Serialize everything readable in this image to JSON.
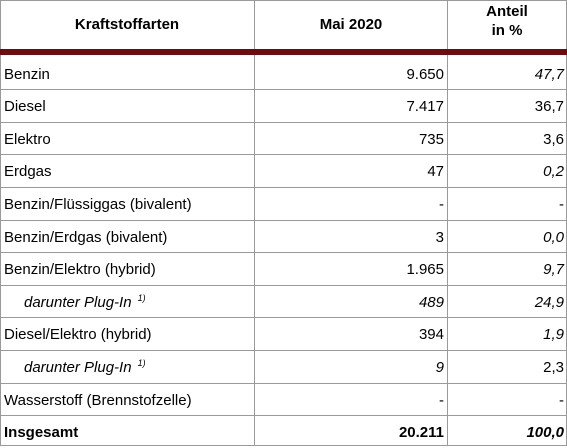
{
  "header": {
    "col1": "Kraftstoffarten",
    "col2": "Mai 2020",
    "col3_line1": "Anteil",
    "col3_line2": "in %"
  },
  "rows": [
    {
      "label": "Benzin",
      "value": "9.650",
      "share": "47,7",
      "share_italic": true
    },
    {
      "label": "Diesel",
      "value": "7.417",
      "share": "36,7",
      "share_italic": false
    },
    {
      "label": "Elektro",
      "value": "735",
      "share": "3,6",
      "share_italic": false
    },
    {
      "label": "Erdgas",
      "value": "47",
      "share": "0,2",
      "share_italic": true
    },
    {
      "label": "Benzin/Flüssiggas (bivalent)",
      "value": "-",
      "share": "-",
      "share_italic": false
    },
    {
      "label": "Benzin/Erdgas (bivalent)",
      "value": "3",
      "share": "0,0",
      "share_italic": true
    },
    {
      "label": "Benzin/Elektro (hybrid)",
      "value": "1.965",
      "share": "9,7",
      "share_italic": true
    },
    {
      "label": "darunter Plug-In",
      "footnote": "1)",
      "value": "489",
      "share": "24,9",
      "share_italic": true,
      "italic_row": true
    },
    {
      "label": "Diesel/Elektro (hybrid)",
      "value": "394",
      "share": "1,9",
      "share_italic": true
    },
    {
      "label": "darunter Plug-In",
      "footnote": "1)",
      "value": "9",
      "share": "2,3",
      "share_italic": false,
      "italic_row": true
    },
    {
      "label": "Wasserstoff (Brennstofzelle)",
      "value": "-",
      "share": "-",
      "share_italic": false
    },
    {
      "label": "Insgesamt",
      "value": "20.211",
      "share": "100,0",
      "share_italic": true,
      "total": true
    }
  ],
  "colors": {
    "accent_rule": "#6b0c12",
    "grid": "#9a9a9a"
  }
}
